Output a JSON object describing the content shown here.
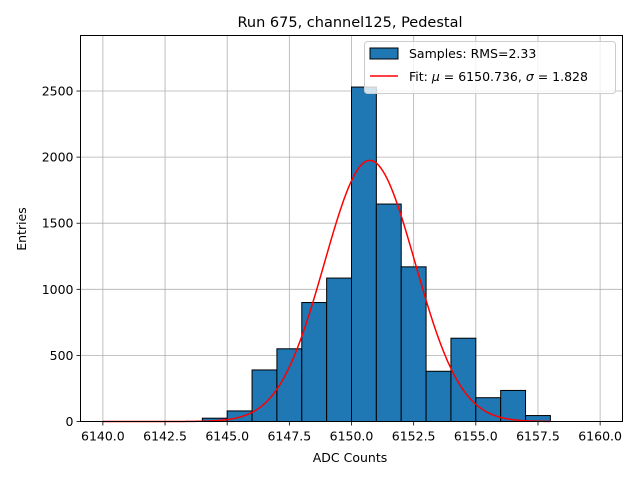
{
  "chart_data": {
    "type": "bar",
    "title": "Run 675, channel125, Pedestal",
    "xlabel": "ADC Counts",
    "ylabel": "Entries",
    "xlim": [
      6139.1,
      6160.9
    ],
    "ylim": [
      0,
      2920
    ],
    "grid": true,
    "legend_position": "top-right",
    "x_ticks": [
      6140.0,
      6142.5,
      6145.0,
      6147.5,
      6150.0,
      6152.5,
      6155.0,
      6157.5,
      6160.0
    ],
    "x_tick_labels": [
      "6140.0",
      "6142.5",
      "6145.0",
      "6147.5",
      "6150.0",
      "6152.5",
      "6155.0",
      "6157.5",
      "6160.0"
    ],
    "y_ticks": [
      0,
      500,
      1000,
      1500,
      2000,
      2500
    ],
    "y_tick_labels": [
      "0",
      "500",
      "1000",
      "1500",
      "2000",
      "2500"
    ],
    "bins": [
      {
        "x0": 6144.0,
        "x1": 6145.0,
        "value": 25
      },
      {
        "x0": 6145.0,
        "x1": 6146.0,
        "value": 80
      },
      {
        "x0": 6146.0,
        "x1": 6147.0,
        "value": 390
      },
      {
        "x0": 6147.0,
        "x1": 6148.0,
        "value": 550
      },
      {
        "x0": 6148.0,
        "x1": 6149.0,
        "value": 900
      },
      {
        "x0": 6149.0,
        "x1": 6150.0,
        "value": 1085
      },
      {
        "x0": 6150.0,
        "x1": 6151.0,
        "value": 2530
      },
      {
        "x0": 6151.0,
        "x1": 6152.0,
        "value": 1645
      },
      {
        "x0": 6152.0,
        "x1": 6153.0,
        "value": 1170
      },
      {
        "x0": 6153.0,
        "x1": 6154.0,
        "value": 380
      },
      {
        "x0": 6154.0,
        "x1": 6155.0,
        "value": 630
      },
      {
        "x0": 6155.0,
        "x1": 6156.0,
        "value": 180
      },
      {
        "x0": 6156.0,
        "x1": 6157.0,
        "value": 235
      },
      {
        "x0": 6157.0,
        "x1": 6158.0,
        "value": 45
      }
    ],
    "fit": {
      "mu": 6150.736,
      "sigma": 1.828,
      "amplitude": 1975,
      "x_range": [
        6140.0,
        6158.0
      ]
    },
    "series": [
      {
        "name": "Samples: RMS=2.33",
        "color": "#1f77b4",
        "kind": "histogram"
      },
      {
        "name": "Fit: μ = 6150.736, σ = 1.828",
        "color": "#ff0000",
        "kind": "line"
      }
    ]
  },
  "legend": {
    "samples_prefix": "Samples: RMS=2.33",
    "fit_prefix": "Fit: ",
    "mu_symbol": "μ",
    "mu_value": " = 6150.736, ",
    "sigma_symbol": "σ",
    "sigma_value": " = 1.828"
  },
  "colors": {
    "bar_fill": "#1f77b4",
    "bar_edge": "#000000",
    "fit_line": "#ff0000",
    "grid": "#b0b0b0"
  }
}
